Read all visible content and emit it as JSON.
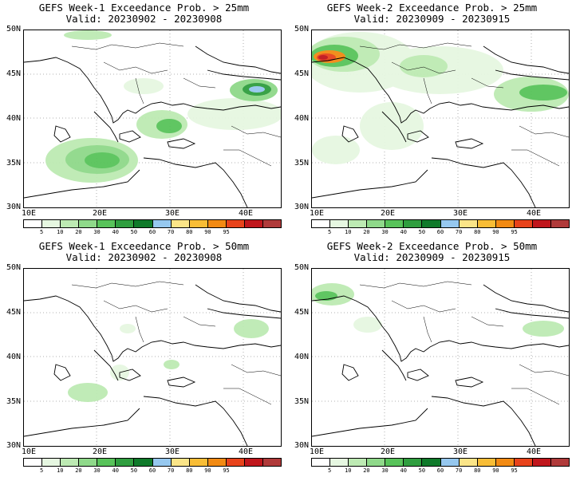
{
  "panels": [
    {
      "title": "GEFS Week-1 Exceedance Prob. > 25mm",
      "valid": "Valid: 20230902 - 20230908"
    },
    {
      "title": "GEFS Week-2 Exceedance Prob. > 25mm",
      "valid": "Valid: 20230909 - 20230915"
    },
    {
      "title": "GEFS Week-1 Exceedance Prob. > 50mm",
      "valid": "Valid: 20230902 - 20230908"
    },
    {
      "title": "GEFS Week-2 Exceedance Prob. > 50mm",
      "valid": "Valid: 20230909 - 20230915"
    }
  ],
  "lat_labels": [
    "50N",
    "45N",
    "40N",
    "35N",
    "30N"
  ],
  "lon_labels": [
    "10E",
    "20E",
    "30E",
    "40E"
  ],
  "colorbar": {
    "ticks": [
      "5",
      "10",
      "20",
      "30",
      "40",
      "50",
      "60",
      "70",
      "80",
      "90",
      "95"
    ],
    "colors": [
      "#ffffff",
      "#e6f7e1",
      "#bdeab3",
      "#8fd98a",
      "#58c35a",
      "#2f9e3f",
      "#0f7a2a",
      "#96c8ef",
      "#fbe588",
      "#f8bd36",
      "#f28a13",
      "#e8431b",
      "#c0161c",
      "#b03a3a"
    ]
  }
}
